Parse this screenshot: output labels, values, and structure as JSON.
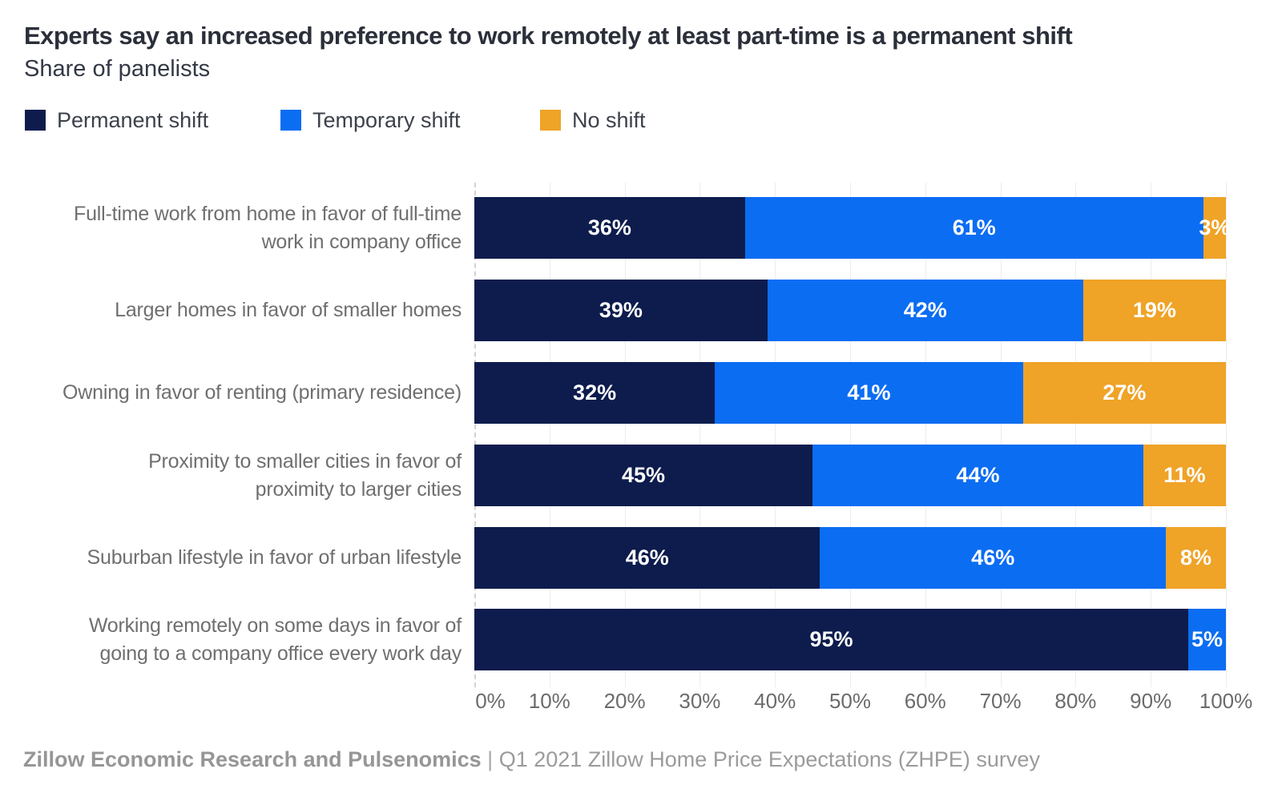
{
  "header": {
    "title": "Experts say an increased preference to work remotely at least part-time is a permanent shift",
    "subtitle": "Share of panelists"
  },
  "legend": {
    "items": [
      {
        "label": "Permanent shift",
        "color": "#0d1c4d"
      },
      {
        "label": "Temporary shift",
        "color": "#0b6df2"
      },
      {
        "label": "No shift",
        "color": "#efa327"
      }
    ]
  },
  "chart_data": {
    "type": "bar",
    "orientation": "horizontal",
    "stacked": true,
    "title": "Experts say an increased preference to work remotely at least part-time is a permanent shift",
    "subtitle": "Share of panelists",
    "categories": [
      [
        "Full-time work from home in favor of full-time",
        "work in company office"
      ],
      [
        "Larger homes in favor of smaller homes"
      ],
      [
        "Owning in favor of renting (primary residence)"
      ],
      [
        "Proximity to smaller cities in favor of",
        "proximity to larger cities"
      ],
      [
        "Suburban lifestyle in favor of urban lifestyle"
      ],
      [
        "Working remotely on some days in favor of",
        "going to a company office every work day"
      ]
    ],
    "series": [
      {
        "name": "Permanent shift",
        "color": "#0d1c4d",
        "values": [
          36,
          39,
          32,
          45,
          46,
          95
        ]
      },
      {
        "name": "Temporary shift",
        "color": "#0b6df2",
        "values": [
          61,
          42,
          41,
          44,
          46,
          5
        ]
      },
      {
        "name": "No shift",
        "color": "#efa327",
        "values": [
          3,
          19,
          27,
          11,
          8,
          0
        ]
      }
    ],
    "value_suffix": "%",
    "x_ticks": [
      "0%",
      "10%",
      "20%",
      "30%",
      "40%",
      "50%",
      "60%",
      "70%",
      "80%",
      "90%",
      "100%"
    ],
    "xlim": [
      0,
      100
    ],
    "grid": "vertical gridlines every 10%, dashed line at 0%",
    "legend_position": "top-left",
    "value_label_color": "#ffffff"
  },
  "footer": {
    "source_bold": "Zillow Economic Research and Pulsenomics",
    "separator": " | ",
    "source_detail": "Q1 2021 Zillow Home Price Expectations (ZHPE) survey"
  }
}
